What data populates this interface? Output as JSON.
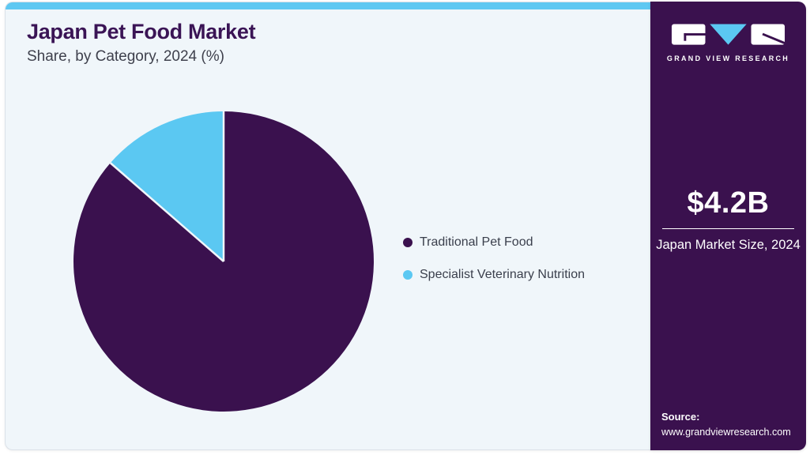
{
  "header": {
    "title": "Japan Pet Food Market",
    "subtitle": "Share, by Category, 2024 (%)"
  },
  "chart_data": {
    "type": "pie",
    "title": "Japan Pet Food Market Share, by Category, 2024 (%)",
    "labels": [
      "Traditional Pet Food",
      "Specialist Veterinary Nutrition"
    ],
    "values": [
      86.4,
      13.6
    ],
    "unit": "%",
    "colors": [
      "#3a114e",
      "#5bc8f2"
    ],
    "slice_divider_color": "#f0f6fa",
    "start_angle_deg": -90,
    "direction": "clockwise",
    "legend_position": "right"
  },
  "sidebar": {
    "logo_text": "GRAND VIEW RESEARCH",
    "stat_value": "$4.2B",
    "stat_label": "Japan Market Size, 2024",
    "source_label": "Source:",
    "source_url": "www.grandviewresearch.com"
  },
  "theme": {
    "accent_blue": "#5ec8f2",
    "brand_purple": "#3a114e",
    "panel_background": "#f0f6fa"
  }
}
